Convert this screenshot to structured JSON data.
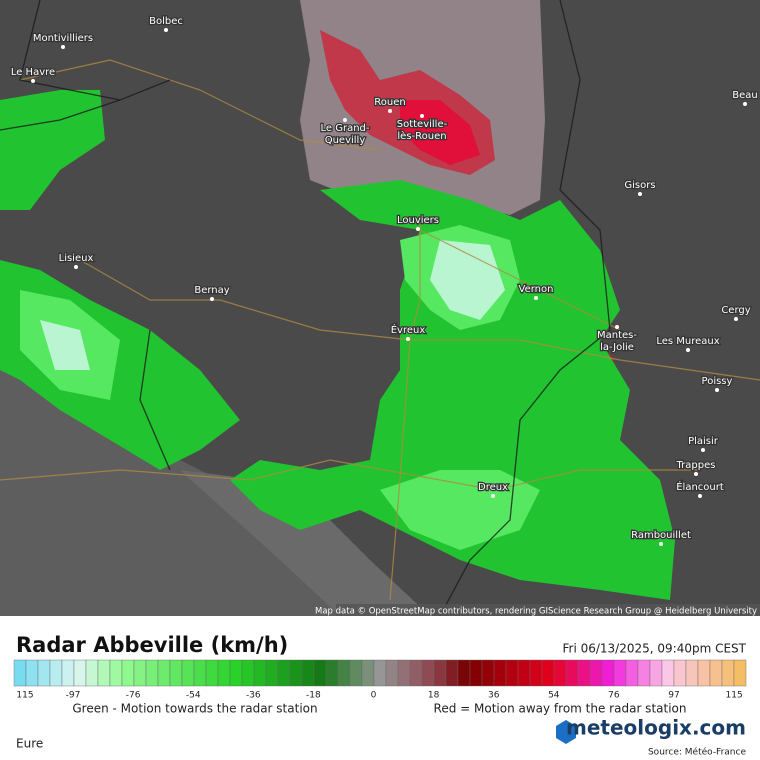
{
  "map": {
    "cities": [
      {
        "lines": [
          "Montivilliers"
        ]
      },
      {
        "lines": [
          "Bolbec"
        ]
      },
      {
        "lines": [
          "Le Havre"
        ]
      },
      {
        "lines": [
          "Rouen"
        ]
      },
      {
        "lines": [
          "Le Grand-",
          "Quevilly"
        ]
      },
      {
        "lines": [
          "Sotteville-",
          "lès-Rouen"
        ]
      },
      {
        "lines": [
          "Louviers"
        ]
      },
      {
        "lines": [
          "Gisors"
        ]
      },
      {
        "lines": [
          "Lisieux"
        ]
      },
      {
        "lines": [
          "Bernay"
        ]
      },
      {
        "lines": [
          "Vernon"
        ]
      },
      {
        "lines": [
          "Évreux"
        ]
      },
      {
        "lines": [
          "Mantes-",
          "la-Jolie"
        ]
      },
      {
        "lines": [
          "Les Mureaux"
        ]
      },
      {
        "lines": [
          "Cergy"
        ]
      },
      {
        "lines": [
          "Poissy"
        ]
      },
      {
        "lines": [
          "Plaisir"
        ]
      },
      {
        "lines": [
          "Trappes"
        ]
      },
      {
        "lines": [
          "Élancourt"
        ]
      },
      {
        "lines": [
          "Dreux"
        ]
      },
      {
        "lines": [
          "Rambouillet"
        ]
      },
      {
        "lines": [
          "Beau"
        ]
      }
    ],
    "attribution": "Map data © OpenStreetMap contributors, rendering GIScience Research Group @ Heidelberg University"
  },
  "legend": {
    "title": "Radar Abbeville (km/h)",
    "timestamp": "Fri 06/13/2025, 09:40pm CEST",
    "ticks": [
      "115",
      "-97",
      "-76",
      "-54",
      "-36",
      "-18",
      "0",
      "18",
      "36",
      "54",
      "76",
      "97",
      "115"
    ],
    "green_note": "Green - Motion towards the radar station",
    "red_note": "Red = Motion away from the radar station"
  },
  "footer": {
    "region": "Eure",
    "brand": "meteologix.com",
    "source": "Source: Météo-France"
  }
}
